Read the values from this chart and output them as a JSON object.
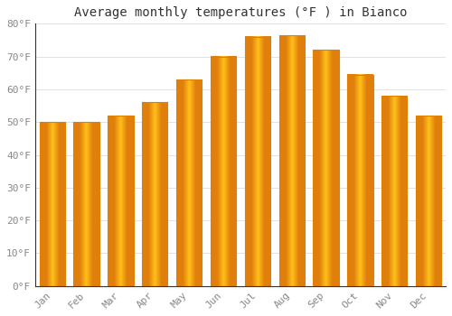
{
  "title": "Average monthly temperatures (°F ) in Bianco",
  "months": [
    "Jan",
    "Feb",
    "Mar",
    "Apr",
    "May",
    "Jun",
    "Jul",
    "Aug",
    "Sep",
    "Oct",
    "Nov",
    "Dec"
  ],
  "values": [
    50,
    50,
    52,
    56,
    63,
    70,
    76,
    76.5,
    72,
    64.5,
    58,
    52
  ],
  "bar_color_face": "#FFBB00",
  "bar_color_edge": "#E08000",
  "background_color": "#FFFFFF",
  "grid_color": "#DDDDDD",
  "tick_label_color": "#888888",
  "title_color": "#333333",
  "ylim": [
    0,
    80
  ],
  "yticks": [
    0,
    10,
    20,
    30,
    40,
    50,
    60,
    70,
    80
  ],
  "ytick_labels": [
    "0°F",
    "10°F",
    "20°F",
    "30°F",
    "40°F",
    "50°F",
    "60°F",
    "70°F",
    "80°F"
  ],
  "title_fontsize": 10,
  "tick_fontsize": 8
}
